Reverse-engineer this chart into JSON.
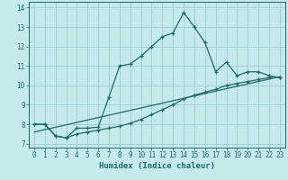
{
  "xlabel": "Humidex (Indice chaleur)",
  "background_color": "#c5eaea",
  "grid_color": "#9ecece",
  "line_color": "#1e6b63",
  "xlim": [
    -0.5,
    23.5
  ],
  "ylim": [
    6.8,
    14.3
  ],
  "xticks": [
    0,
    1,
    2,
    3,
    4,
    5,
    6,
    7,
    8,
    9,
    10,
    11,
    12,
    13,
    14,
    15,
    16,
    17,
    18,
    19,
    20,
    21,
    22,
    23
  ],
  "yticks": [
    7,
    8,
    9,
    10,
    11,
    12,
    13,
    14
  ],
  "line1_x": [
    0,
    1,
    2,
    3,
    4,
    5,
    6,
    7,
    8,
    9,
    10,
    11,
    12,
    13,
    14,
    15,
    16,
    17,
    18,
    19,
    20,
    21,
    22,
    23
  ],
  "line1_y": [
    8.0,
    8.0,
    7.4,
    7.3,
    7.8,
    7.8,
    7.85,
    9.4,
    11.0,
    11.1,
    11.5,
    12.0,
    12.5,
    12.7,
    13.75,
    13.0,
    12.2,
    10.7,
    11.2,
    10.5,
    10.7,
    10.7,
    10.5,
    10.4
  ],
  "line2_x": [
    0,
    1,
    2,
    3,
    4,
    5,
    6,
    7,
    8,
    9,
    10,
    11,
    12,
    13,
    14,
    15,
    16,
    17,
    18,
    19,
    20,
    21,
    22,
    23
  ],
  "line2_y": [
    8.0,
    8.0,
    7.4,
    7.3,
    7.5,
    7.6,
    7.7,
    7.8,
    7.9,
    8.05,
    8.25,
    8.5,
    8.75,
    9.0,
    9.3,
    9.5,
    9.65,
    9.8,
    10.0,
    10.1,
    10.2,
    10.3,
    10.4,
    10.42
  ],
  "line3_x": [
    0,
    23
  ],
  "line3_y": [
    7.6,
    10.45
  ]
}
